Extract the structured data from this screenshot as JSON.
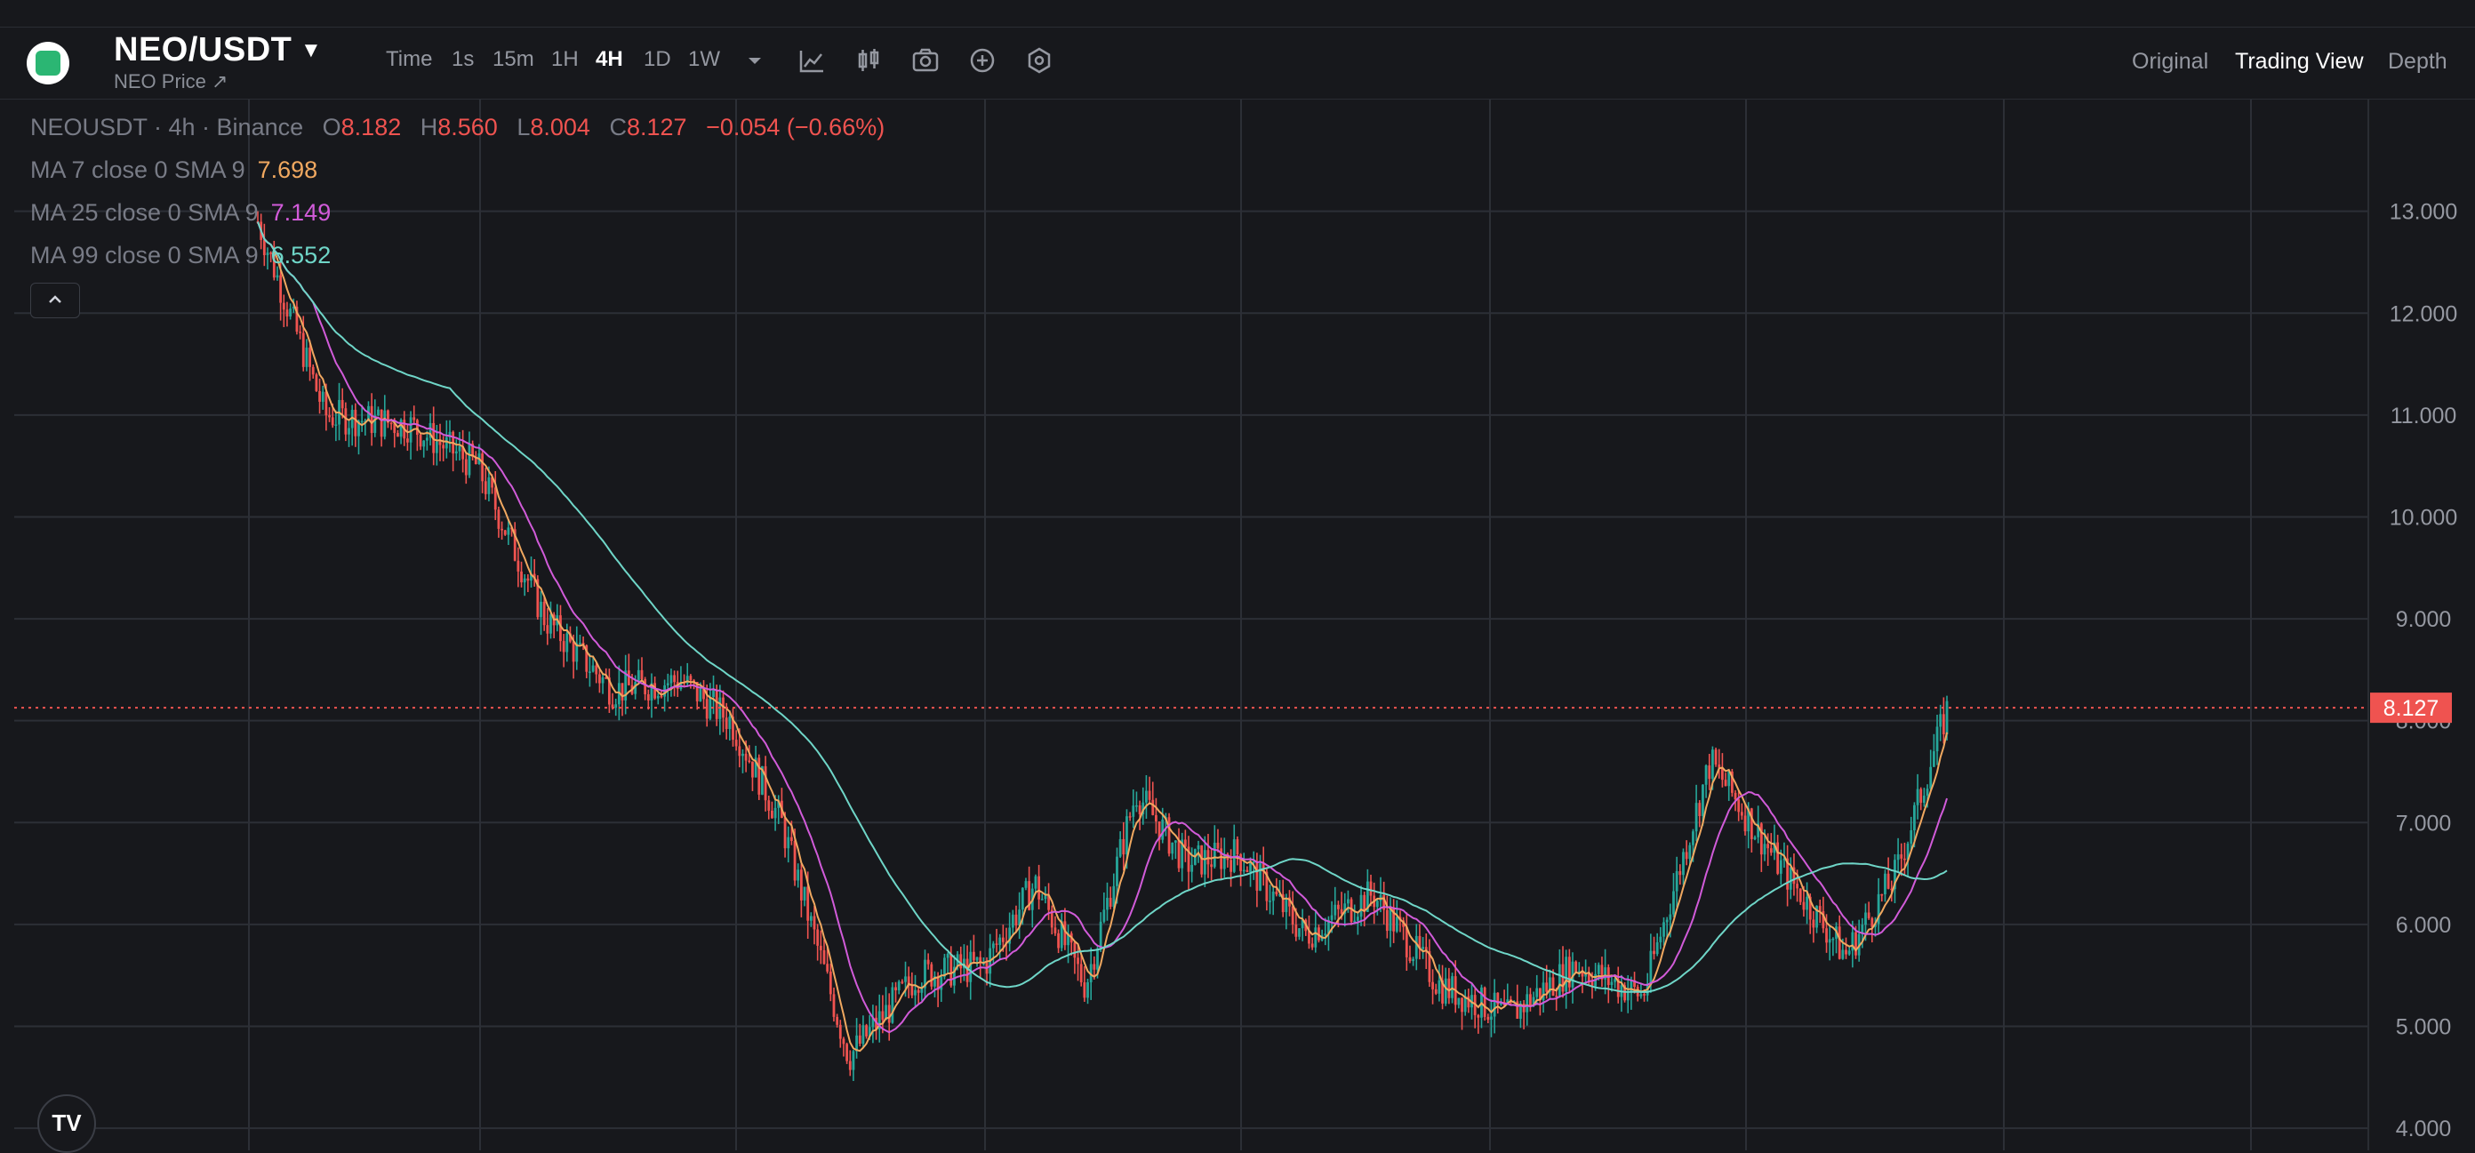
{
  "header": {
    "symbol": "NEO/USDT",
    "subtitle": "NEO Price ↗",
    "timeframes": [
      "Time",
      "1s",
      "15m",
      "1H",
      "4H",
      "1D",
      "1W"
    ],
    "active_timeframe": "4H",
    "views": [
      "Original",
      "Trading View",
      "Depth"
    ],
    "active_view": "Trading View"
  },
  "legend": {
    "title": "NEOUSDT · 4h · Binance",
    "o_label": "O",
    "o": "8.182",
    "h_label": "H",
    "h": "8.560",
    "l_label": "L",
    "l": "8.004",
    "c_label": "C",
    "c": "8.127",
    "change": "−0.054 (−0.66%)",
    "ma7": {
      "label": "MA 7 close 0 SMA 9",
      "value": "7.698"
    },
    "ma25": {
      "label": "MA 25 close 0 SMA 9",
      "value": "7.149"
    },
    "ma99": {
      "label": "MA 99 close 0 SMA 9",
      "value": "6.552"
    }
  },
  "colors": {
    "up": "#26a69a",
    "down": "#ef5350",
    "ma7": "#f0a860",
    "ma25": "#d15bd9",
    "ma99": "#6fd6c8",
    "background": "#17181c",
    "grid": "#2c2f36"
  },
  "icons": [
    "chevron-down-icon",
    "indicator-icon",
    "candles-icon",
    "camera-icon",
    "plus-circle-icon",
    "settings-icon",
    "chevron-up-icon",
    "tradingview-logo-icon"
  ],
  "chart_data": {
    "type": "candlestick",
    "y_ticks": [
      "13.000",
      "12.000",
      "11.000",
      "10.000",
      "9.000",
      "8.000",
      "7.000",
      "6.000",
      "5.000",
      "4.000"
    ],
    "ylim": [
      3.8,
      13.8
    ],
    "current_price": "8.127",
    "approx_trend": {
      "x": [
        0,
        0.04,
        0.09,
        0.13,
        0.17,
        0.21,
        0.25,
        0.28,
        0.31,
        0.35,
        0.39,
        0.43,
        0.46,
        0.49,
        0.52,
        0.55,
        0.58,
        0.62,
        0.66,
        0.7,
        0.74,
        0.78,
        0.82,
        0.86,
        0.9,
        0.94,
        0.97,
        1.0
      ],
      "y": [
        12.9,
        11.0,
        10.9,
        10.5,
        9.0,
        8.3,
        8.4,
        8.0,
        7.0,
        4.7,
        5.5,
        5.6,
        6.4,
        5.4,
        7.3,
        6.6,
        6.7,
        5.9,
        6.3,
        5.4,
        5.1,
        5.6,
        5.3,
        7.6,
        6.6,
        5.7,
        6.5,
        8.1
      ]
    }
  }
}
